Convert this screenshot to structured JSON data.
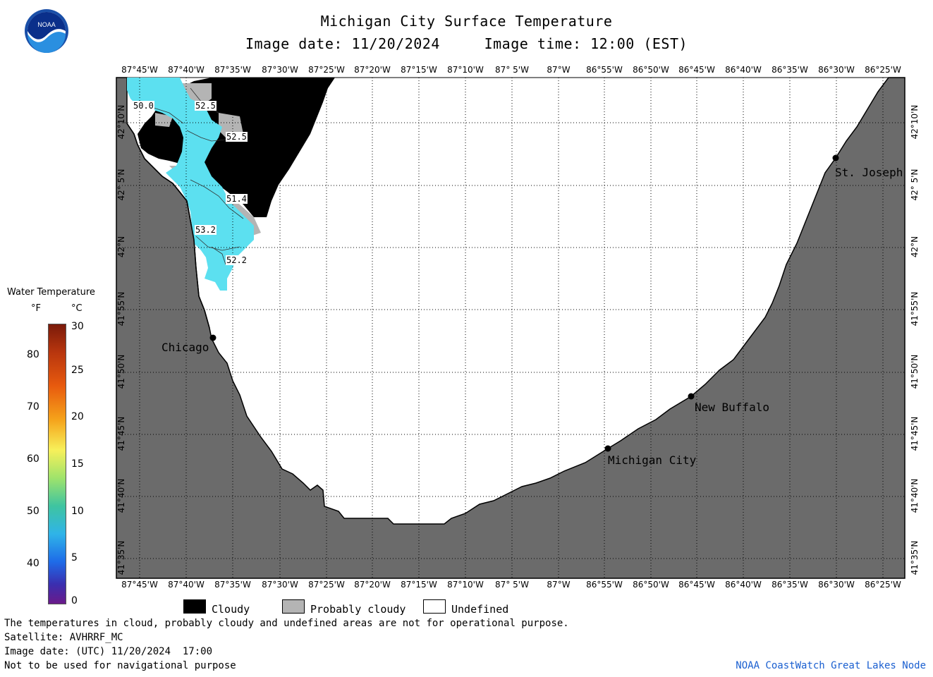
{
  "header": {
    "title": "Michigan City Surface Temperature",
    "date_line": "Image date: 11/20/2024     Image time: 12:00 (EST)"
  },
  "logo": {
    "text": "NOAA",
    "icon": "noaa-logo-icon"
  },
  "legend": {
    "title": "Water Temperature",
    "unit_f": "°F",
    "unit_c": "°C",
    "f_ticks": [
      "80",
      "70",
      "60",
      "50",
      "40"
    ],
    "c_ticks": [
      "30",
      "25",
      "20",
      "15",
      "10",
      "5",
      "0"
    ]
  },
  "map": {
    "lon_labels": [
      "87°45'W",
      "87°40'W",
      "87°35'W",
      "87°30'W",
      "87°25'W",
      "87°20'W",
      "87°15'W",
      "87°10'W",
      "87° 5'W",
      "87°W",
      "86°55'W",
      "86°50'W",
      "86°45'W",
      "86°40'W",
      "86°35'W",
      "86°30'W",
      "86°25'W"
    ],
    "lat_labels": [
      "42°10'N",
      "42° 5'N",
      "42°N",
      "41°55'N",
      "41°50'N",
      "41°45'N",
      "41°40'N",
      "41°35'N"
    ],
    "cities": [
      {
        "name": "St. Joseph"
      },
      {
        "name": "Chicago"
      },
      {
        "name": "New Buffalo"
      },
      {
        "name": "Michigan City"
      }
    ],
    "contour_labels": [
      "50.0",
      "52.5",
      "52.5",
      "51.4",
      "53.2",
      "52.2"
    ],
    "colors": {
      "land": "#6b6b6b",
      "cloudy": "#000000",
      "probably_cloudy": "#b4b4b4",
      "undefined": "#ffffff",
      "water_temp": "#5ce0f0"
    }
  },
  "key": {
    "cloudy": "Cloudy",
    "probably_cloudy": "Probably cloudy",
    "undefined": "Undefined"
  },
  "footer": {
    "line1": "The temperatures in cloud, probably cloudy and undefined areas are not for operational purpose.",
    "line2": "Satellite: AVHRRF_MC",
    "line3": "Image date: (UTC) 11/20/2024  17:00",
    "line4": "Not to be used for navigational purpose",
    "credit": "NOAA CoastWatch Great Lakes Node"
  }
}
